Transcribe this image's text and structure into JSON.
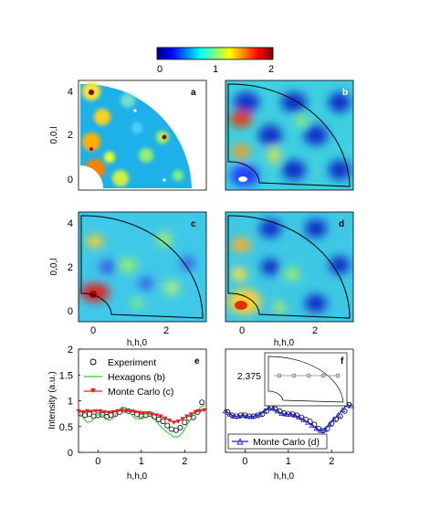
{
  "colorbar": {
    "ticks": [
      "0",
      "1",
      "2"
    ],
    "range": [
      0,
      2
    ],
    "colormap": "jet"
  },
  "chart_data": [
    {
      "panel": "a",
      "type": "heatmap",
      "description_note": "",
      "xlabel": "",
      "ylabel": "0,0,l",
      "xticks": [],
      "yticks": [
        "0",
        "2",
        "4"
      ],
      "xlim": [
        -0.4,
        3.1
      ],
      "ylim": [
        -0.3,
        4.5
      ]
    },
    {
      "panel": "b",
      "type": "heatmap",
      "xlabel": "",
      "ylabel": "",
      "xticks": [],
      "yticks": [],
      "xlim": [
        -0.4,
        3.1
      ],
      "ylim": [
        -0.3,
        4.5
      ]
    },
    {
      "panel": "c",
      "type": "heatmap",
      "xlabel": "h,h,0",
      "ylabel": "0,0,l",
      "xticks": [
        "0",
        "2"
      ],
      "yticks": [
        "0",
        "2",
        "4"
      ],
      "xlim": [
        -0.4,
        3.1
      ],
      "ylim": [
        -0.3,
        4.5
      ]
    },
    {
      "panel": "d",
      "type": "heatmap",
      "xlabel": "h,h,0",
      "ylabel": "",
      "xticks": [
        "0",
        "2"
      ],
      "yticks": [],
      "xlim": [
        -0.4,
        3.1
      ],
      "ylim": [
        -0.3,
        4.5
      ]
    },
    {
      "panel": "e",
      "type": "line",
      "xlabel": "h,h,0",
      "ylabel": "Intensity (a.u.)",
      "xlim": [
        -0.45,
        2.5
      ],
      "ylim": [
        0,
        2
      ],
      "xticks": [
        "0",
        "1",
        "2"
      ],
      "yticks": [
        "0",
        "0.5",
        "1",
        "1.5",
        "2"
      ],
      "legend_position": "top-left",
      "series": [
        {
          "name": "Experiment",
          "marker": "open-circle",
          "color": "#000000",
          "x": [
            -0.4,
            -0.3,
            -0.2,
            -0.1,
            0.0,
            0.1,
            0.2,
            0.3,
            0.4,
            0.5,
            0.6,
            0.7,
            0.8,
            0.9,
            1.0,
            1.1,
            1.2,
            1.3,
            1.4,
            1.5,
            1.6,
            1.7,
            1.8,
            1.9,
            2.0,
            2.1,
            2.2,
            2.3,
            2.4
          ],
          "y": [
            0.75,
            0.72,
            0.74,
            0.7,
            0.72,
            0.73,
            0.69,
            0.72,
            0.74,
            0.78,
            0.82,
            0.8,
            0.78,
            0.74,
            0.7,
            0.72,
            0.74,
            0.69,
            0.64,
            0.6,
            0.52,
            0.45,
            0.43,
            0.48,
            0.58,
            0.66,
            0.68,
            0.78,
            0.97
          ]
        },
        {
          "name": "Hexagons (b)",
          "line": "solid",
          "color": "#33cc33",
          "x": [
            -0.45,
            -0.35,
            -0.25,
            -0.15,
            -0.05,
            0.05,
            0.15,
            0.25,
            0.35,
            0.45,
            0.55,
            0.65,
            0.75,
            0.85,
            0.95,
            1.05,
            1.15,
            1.25,
            1.35,
            1.45,
            1.55,
            1.65,
            1.75,
            1.85,
            1.95,
            2.05,
            2.15,
            2.25,
            2.35,
            2.45
          ],
          "y": [
            0.8,
            0.68,
            0.58,
            0.6,
            0.7,
            0.75,
            0.7,
            0.62,
            0.66,
            0.78,
            0.88,
            0.86,
            0.76,
            0.66,
            0.65,
            0.72,
            0.76,
            0.7,
            0.6,
            0.5,
            0.42,
            0.36,
            0.3,
            0.3,
            0.38,
            0.52,
            0.66,
            0.76,
            0.86,
            0.92
          ]
        },
        {
          "name": "Monte Carlo (c)",
          "marker": "triangle-down",
          "line": "solid",
          "color": "#e02020",
          "x": [
            -0.45,
            -0.35,
            -0.25,
            -0.15,
            -0.05,
            0.05,
            0.15,
            0.25,
            0.35,
            0.45,
            0.55,
            0.65,
            0.75,
            0.85,
            0.95,
            1.05,
            1.15,
            1.25,
            1.35,
            1.45,
            1.55,
            1.65,
            1.75,
            1.85,
            1.95,
            2.05,
            2.15,
            2.25,
            2.35,
            2.45
          ],
          "y": [
            0.8,
            0.78,
            0.8,
            0.79,
            0.8,
            0.8,
            0.78,
            0.77,
            0.78,
            0.8,
            0.81,
            0.8,
            0.79,
            0.78,
            0.77,
            0.76,
            0.76,
            0.74,
            0.72,
            0.7,
            0.66,
            0.62,
            0.58,
            0.6,
            0.65,
            0.7,
            0.74,
            0.78,
            0.8,
            0.82
          ]
        }
      ]
    },
    {
      "panel": "f",
      "type": "line",
      "xlabel": "h,h,0",
      "ylabel": "",
      "xlim": [
        -0.45,
        2.5
      ],
      "ylim": [
        0,
        2
      ],
      "xticks": [
        "0",
        "1",
        "2"
      ],
      "yticks": [],
      "legend_position": "bottom-right",
      "inset_label": "2.375",
      "series": [
        {
          "name": "",
          "marker": "open-circle",
          "color": "#000000",
          "x": [
            -0.4,
            -0.3,
            -0.2,
            -0.1,
            0.0,
            0.1,
            0.2,
            0.3,
            0.4,
            0.5,
            0.6,
            0.7,
            0.8,
            0.9,
            1.0,
            1.1,
            1.2,
            1.3,
            1.4,
            1.5,
            1.6,
            1.7,
            1.8,
            1.9,
            2.0,
            2.1,
            2.2,
            2.3,
            2.4
          ],
          "y": [
            0.78,
            0.72,
            0.7,
            0.72,
            0.72,
            0.7,
            0.7,
            0.72,
            0.74,
            0.8,
            0.86,
            0.84,
            0.8,
            0.76,
            0.74,
            0.74,
            0.72,
            0.68,
            0.64,
            0.6,
            0.54,
            0.46,
            0.42,
            0.46,
            0.56,
            0.64,
            0.7,
            0.8,
            0.92
          ]
        },
        {
          "name": "Monte Carlo (d)",
          "marker": "triangle-up",
          "line": "solid",
          "color": "#2222cc",
          "x": [
            -0.45,
            -0.35,
            -0.25,
            -0.15,
            -0.05,
            0.05,
            0.15,
            0.25,
            0.35,
            0.45,
            0.55,
            0.65,
            0.75,
            0.85,
            0.95,
            1.05,
            1.15,
            1.25,
            1.35,
            1.45,
            1.55,
            1.65,
            1.75,
            1.85,
            1.95,
            2.05,
            2.15,
            2.25,
            2.35,
            2.45
          ],
          "y": [
            0.8,
            0.74,
            0.7,
            0.7,
            0.72,
            0.7,
            0.69,
            0.71,
            0.74,
            0.8,
            0.86,
            0.85,
            0.8,
            0.75,
            0.74,
            0.74,
            0.72,
            0.68,
            0.63,
            0.58,
            0.52,
            0.46,
            0.42,
            0.44,
            0.54,
            0.64,
            0.72,
            0.82,
            0.92,
            0.9
          ]
        }
      ]
    }
  ]
}
